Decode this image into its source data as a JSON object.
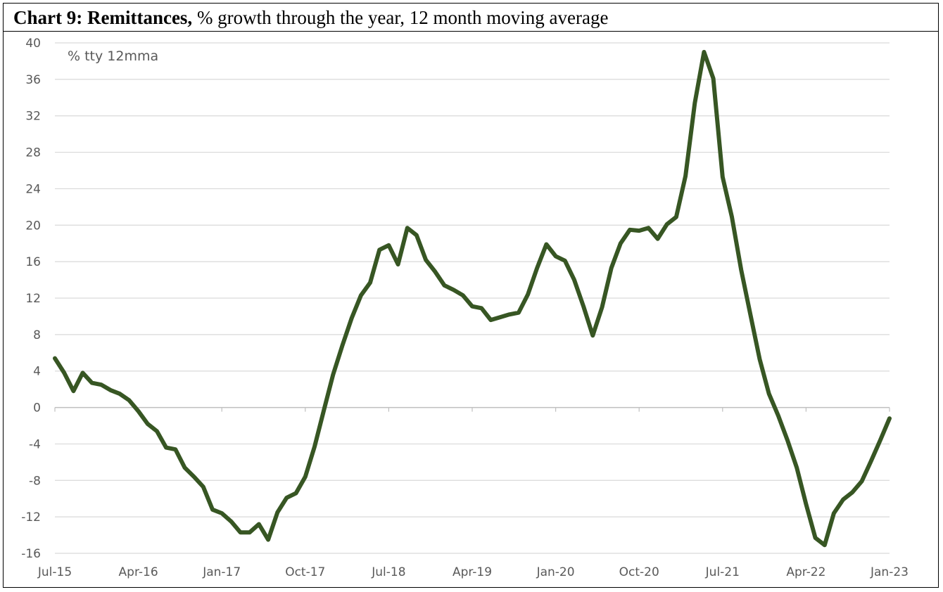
{
  "title": {
    "bold": "Chart 9: Remittances,",
    "rest": "% growth through the year, 12 month moving average"
  },
  "chart_data": {
    "type": "line",
    "unit_label": "% tty 12mma",
    "ylim": [
      -16,
      40
    ],
    "yticks": [
      40,
      36,
      32,
      28,
      24,
      20,
      16,
      12,
      8,
      4,
      0,
      -4,
      -8,
      -12,
      -16
    ],
    "ytick_labels": [
      "40",
      "36",
      "32",
      "28",
      "24",
      "20",
      "16",
      "12",
      "8",
      "4",
      "0",
      "-4",
      "-8",
      "-12",
      "-16"
    ],
    "xtick_labels": [
      "Jul-15",
      "Apr-16",
      "Jan-17",
      "Oct-17",
      "Jul-18",
      "Apr-19",
      "Jan-20",
      "Oct-20",
      "Jul-21",
      "Apr-22",
      "Jan-23"
    ],
    "grid": true,
    "line_color": "#375623",
    "series": [
      {
        "x": [
          "Jul-15",
          "Aug-15",
          "Sep-15",
          "Oct-15",
          "Nov-15",
          "Dec-15",
          "Jan-16",
          "Feb-16",
          "Mar-16",
          "Apr-16",
          "May-16",
          "Jun-16",
          "Jul-16",
          "Aug-16",
          "Sep-16",
          "Oct-16",
          "Nov-16",
          "Dec-16",
          "Jan-17",
          "Feb-17",
          "Mar-17",
          "Apr-17",
          "May-17",
          "Jun-17",
          "Jul-17",
          "Aug-17",
          "Sep-17",
          "Oct-17",
          "Nov-17",
          "Dec-17",
          "Jan-18",
          "Feb-18",
          "Mar-18",
          "Apr-18",
          "May-18",
          "Jun-18",
          "Jul-18",
          "Aug-18",
          "Sep-18",
          "Oct-18",
          "Nov-18",
          "Dec-18",
          "Jan-19",
          "Feb-19",
          "Mar-19",
          "Apr-19",
          "May-19",
          "Jun-19",
          "Jul-19",
          "Aug-19",
          "Sep-19",
          "Oct-19",
          "Nov-19",
          "Dec-19",
          "Jan-20",
          "Feb-20",
          "Mar-20",
          "Apr-20",
          "May-20",
          "Jun-20",
          "Jul-20",
          "Aug-20",
          "Sep-20",
          "Oct-20",
          "Nov-20",
          "Dec-20",
          "Jan-21",
          "Feb-21",
          "Mar-21",
          "Apr-21",
          "May-21",
          "Jun-21",
          "Jul-21",
          "Aug-21",
          "Sep-21",
          "Oct-21",
          "Nov-21",
          "Dec-21",
          "Jan-22",
          "Feb-22",
          "Mar-22",
          "Apr-22",
          "May-22",
          "Jun-22",
          "Jul-22",
          "Aug-22",
          "Sep-22",
          "Oct-22",
          "Nov-22",
          "Dec-22",
          "Jan-23"
        ],
        "values": [
          5.4,
          3.8,
          1.8,
          3.8,
          2.7,
          2.5,
          1.9,
          1.5,
          0.8,
          -0.4,
          -1.8,
          -2.6,
          -4.4,
          -4.6,
          -6.6,
          -7.6,
          -8.7,
          -11.2,
          -11.6,
          -12.5,
          -13.7,
          -13.7,
          -12.8,
          -14.5,
          -11.5,
          -9.9,
          -9.4,
          -7.6,
          -4.3,
          -0.3,
          3.6,
          6.8,
          9.8,
          12.3,
          13.7,
          17.3,
          17.8,
          15.7,
          19.7,
          18.9,
          16.2,
          14.9,
          13.4,
          12.9,
          12.3,
          11.1,
          10.9,
          9.6,
          9.9,
          10.2,
          10.4,
          12.4,
          15.3,
          17.9,
          16.6,
          16.1,
          14.0,
          11.1,
          7.9,
          11.0,
          15.3,
          18.0,
          19.5,
          19.4,
          19.7,
          18.5,
          20.1,
          20.9,
          25.4,
          33.4,
          39.0,
          36.1,
          25.3,
          20.9,
          15.1,
          10.2,
          5.3,
          1.5,
          -0.9,
          -3.6,
          -6.6,
          -10.6,
          -14.3,
          -15.1,
          -11.6,
          -10.1,
          -9.3,
          -8.1,
          -5.9,
          -3.6,
          -1.2
        ]
      }
    ]
  }
}
